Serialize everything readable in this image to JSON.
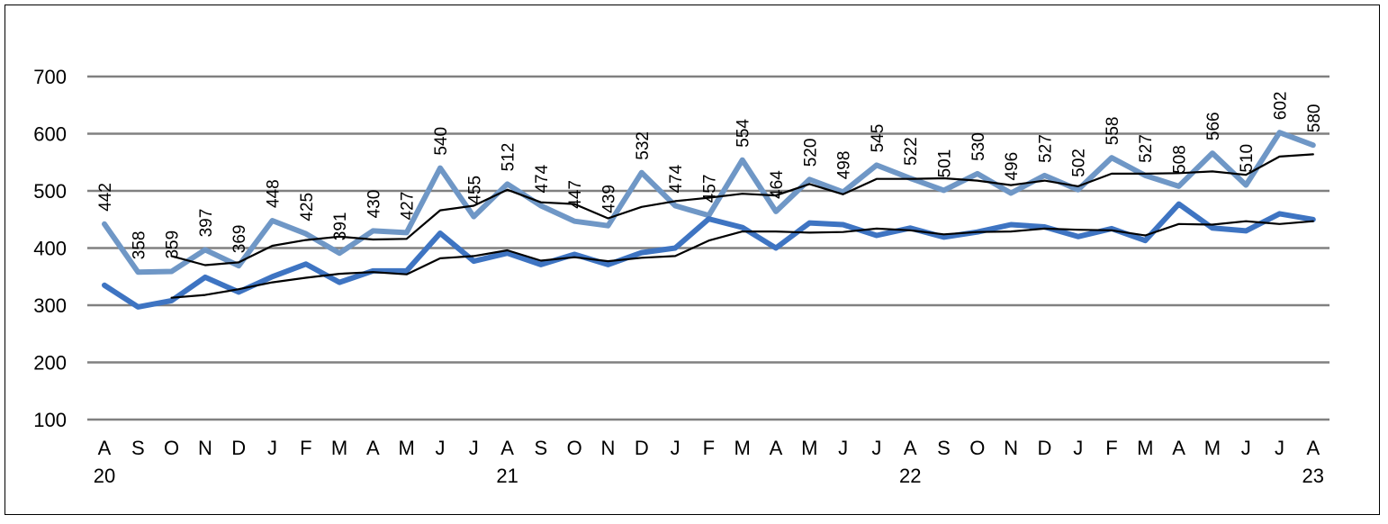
{
  "chart_data": {
    "type": "line",
    "title": "",
    "xlabel": "",
    "ylabel": "",
    "ylim": [
      100,
      700
    ],
    "yticks": [
      100,
      200,
      300,
      400,
      500,
      600,
      700
    ],
    "grid": true,
    "legend": "none",
    "categories": [
      "A",
      "S",
      "O",
      "N",
      "D",
      "J",
      "F",
      "M",
      "A",
      "M",
      "J",
      "J",
      "A",
      "S",
      "O",
      "N",
      "D",
      "J",
      "F",
      "M",
      "A",
      "M",
      "J",
      "J",
      "A",
      "S",
      "O",
      "N",
      "D",
      "J",
      "F",
      "M",
      "A",
      "M",
      "J",
      "J",
      "A"
    ],
    "year_labels": [
      {
        "index": 0,
        "label": "20"
      },
      {
        "index": 12,
        "label": "21"
      },
      {
        "index": 24,
        "label": "22"
      },
      {
        "index": 36,
        "label": "23"
      }
    ],
    "series": [
      {
        "color": "#6f97c6",
        "width": 6,
        "labeled": true,
        "values": [
          442,
          358,
          359,
          397,
          369,
          448,
          425,
          391,
          430,
          427,
          540,
          455,
          512,
          474,
          447,
          439,
          532,
          474,
          457,
          554,
          464,
          520,
          498,
          545,
          522,
          501,
          530,
          496,
          527,
          502,
          558,
          527,
          508,
          566,
          510,
          602,
          580
        ]
      },
      {
        "color": "#3e74c2",
        "width": 6,
        "labeled": false,
        "values": [
          335,
          297,
          308,
          349,
          323,
          350,
          372,
          340,
          360,
          360,
          426,
          377,
          391,
          371,
          389,
          371,
          392,
          400,
          451,
          436,
          400,
          444,
          441,
          422,
          435,
          419,
          428,
          441,
          437,
          420,
          434,
          413,
          477,
          435,
          430,
          460,
          450
        ]
      },
      {
        "color": "#000000",
        "width": 2.2,
        "labeled": false,
        "values": [
          null,
          null,
          386,
          370,
          375,
          404,
          414,
          420,
          415,
          416,
          466,
          474,
          502,
          480,
          477,
          452,
          472,
          482,
          488,
          495,
          492,
          512,
          494,
          521,
          521,
          522,
          518,
          510,
          518,
          508,
          530,
          530,
          531,
          534,
          528,
          560,
          564
        ]
      },
      {
        "color": "#000000",
        "width": 2.2,
        "labeled": false,
        "values": [
          null,
          null,
          313,
          318,
          328,
          340,
          348,
          355,
          358,
          354,
          382,
          386,
          396,
          378,
          384,
          377,
          383,
          386,
          413,
          429,
          429,
          427,
          428,
          434,
          431,
          424,
          428,
          429,
          434,
          432,
          431,
          422,
          442,
          441,
          447,
          442,
          447
        ]
      }
    ]
  }
}
